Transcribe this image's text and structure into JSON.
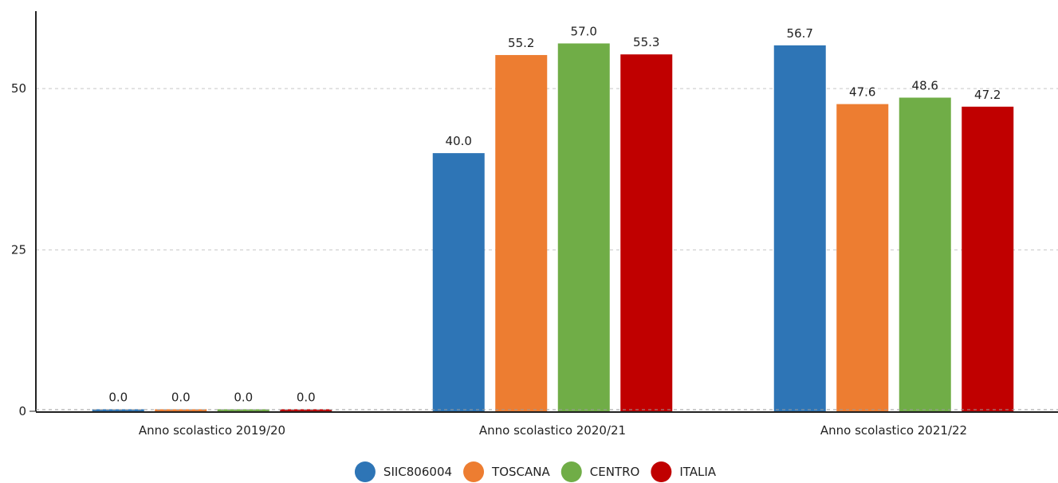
{
  "chart_data": {
    "type": "bar",
    "categories": [
      "Anno scolastico 2019/20",
      "Anno scolastico 2020/21",
      "Anno scolastico 2021/22"
    ],
    "series": [
      {
        "name": "SIIC806004",
        "color": "#2e75b6",
        "values": [
          0.0,
          40.0,
          56.7
        ],
        "labels": [
          "0.0",
          "40.0",
          "56.7"
        ]
      },
      {
        "name": "TOSCANA",
        "color": "#ed7d31",
        "values": [
          0.0,
          55.2,
          47.6
        ],
        "labels": [
          "0.0",
          "55.2",
          "47.6"
        ]
      },
      {
        "name": "CENTRO",
        "color": "#70ad47",
        "values": [
          0.0,
          57.0,
          48.6
        ],
        "labels": [
          "0.0",
          "57.0",
          "48.6"
        ]
      },
      {
        "name": "ITALIA",
        "color": "#c00000",
        "values": [
          0.0,
          55.3,
          47.2
        ],
        "labels": [
          "0.0",
          "55.3",
          "47.2"
        ]
      }
    ],
    "title": "",
    "xlabel": "",
    "ylabel": "",
    "ylim": [
      0,
      62
    ],
    "yticks": [
      0,
      25,
      50
    ],
    "ytick_labels": [
      "0",
      "25",
      "50"
    ],
    "grid": "horizontal dashed",
    "legend": "bottom-center"
  }
}
